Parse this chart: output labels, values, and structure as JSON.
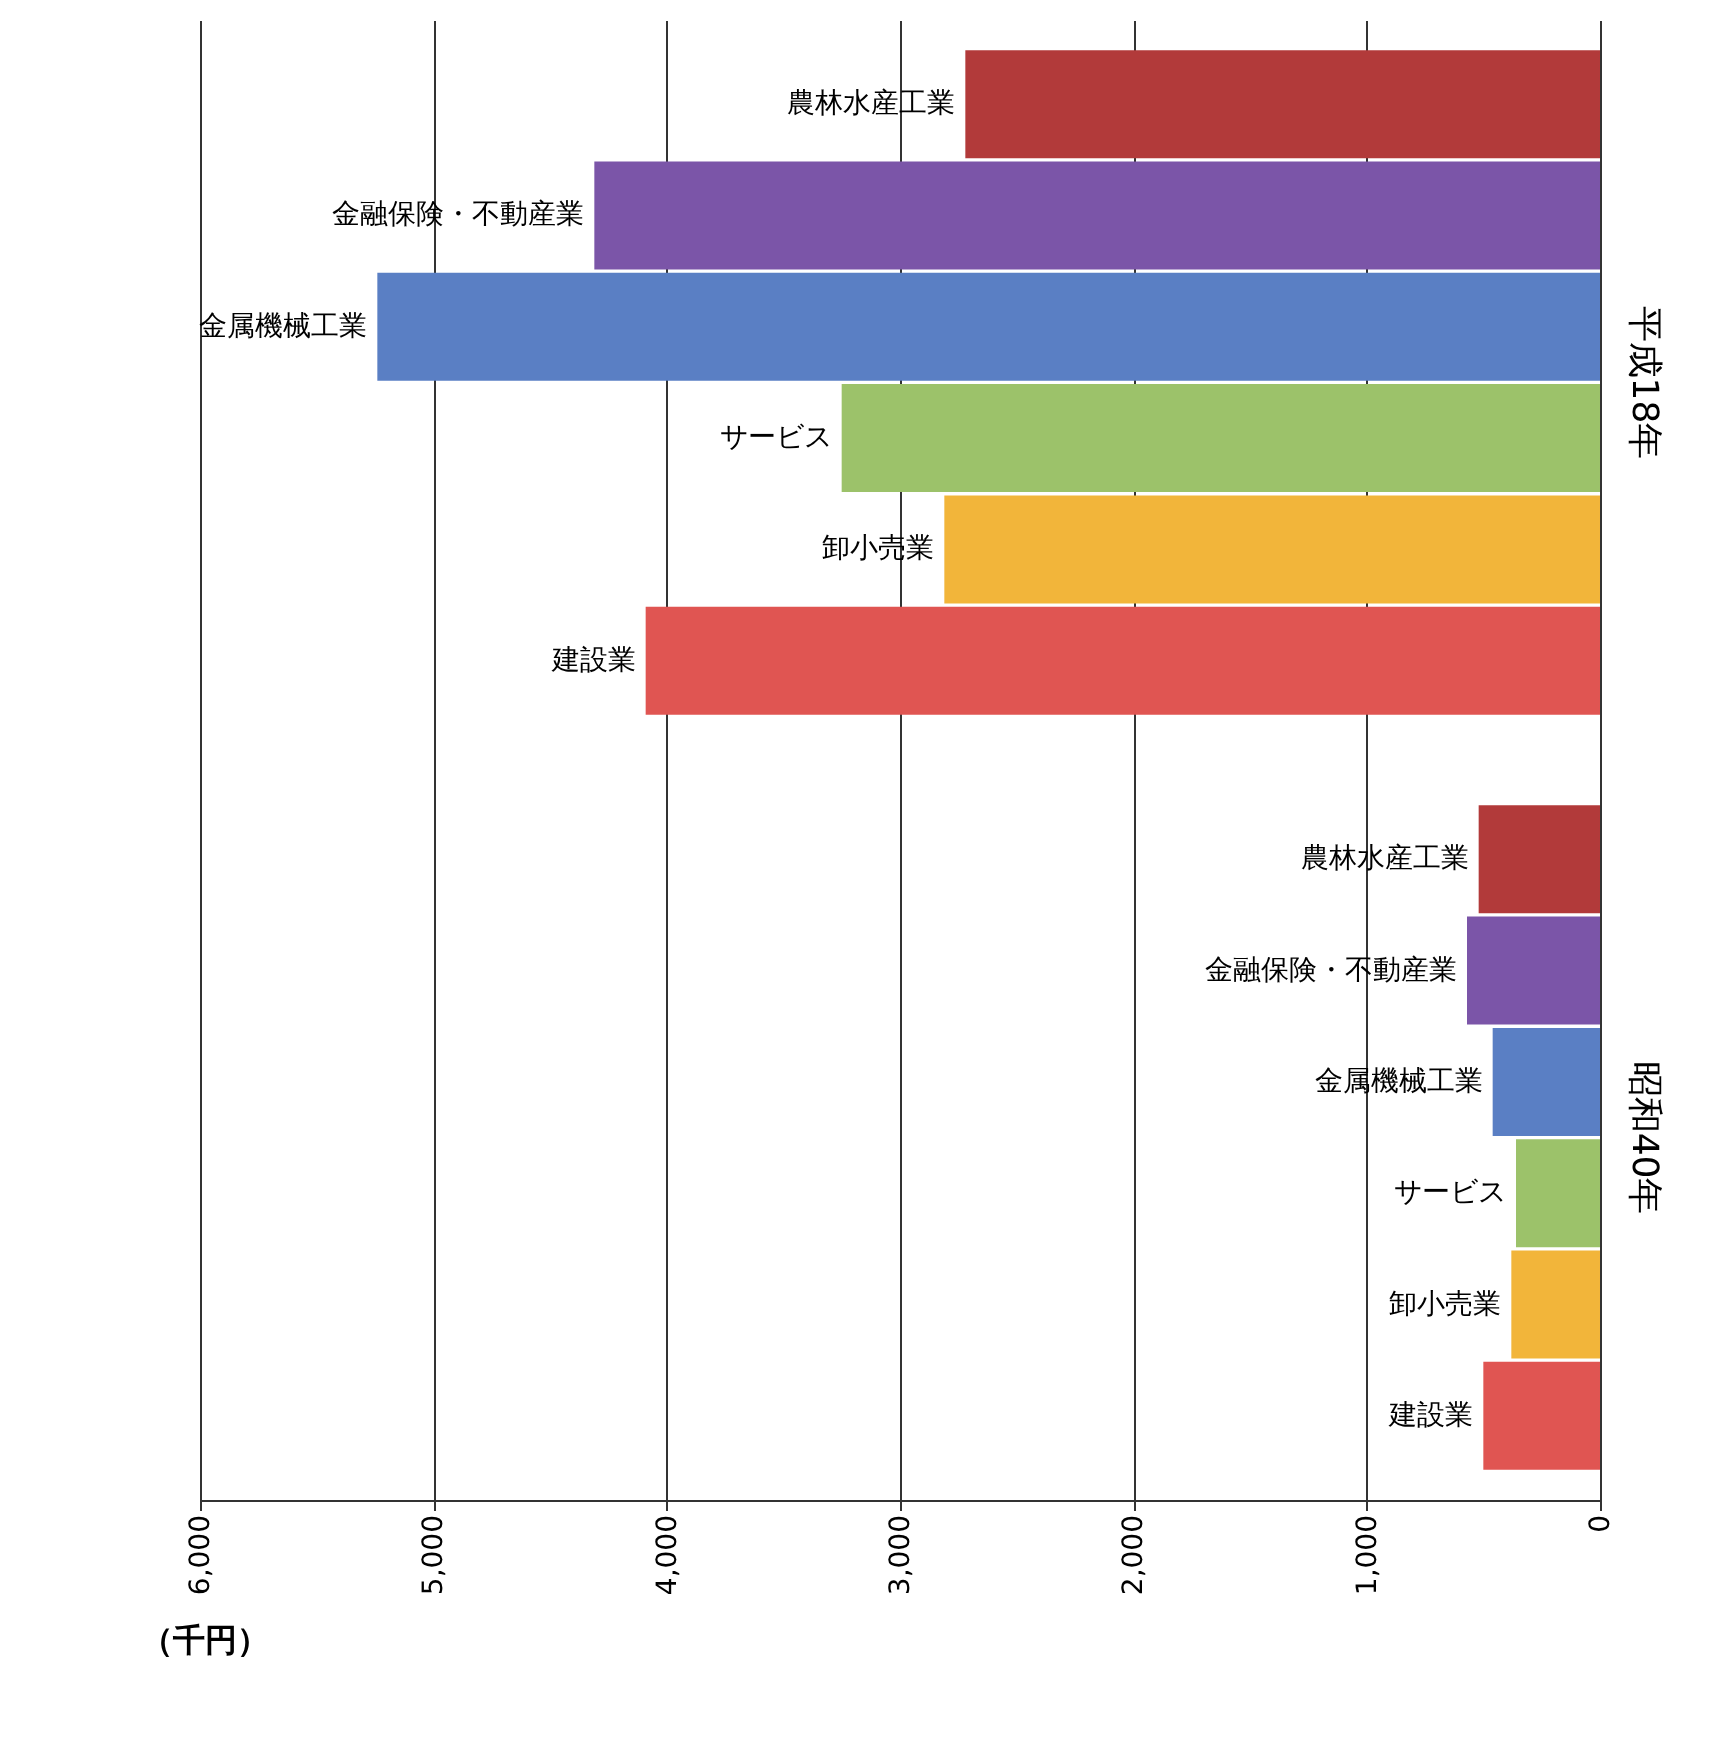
{
  "chart_data": {
    "type": "bar",
    "orientation": "horizontal",
    "xlabel": "（千円）",
    "categories": [
      "平成18年",
      "昭和40年"
    ],
    "series": [
      {
        "name": "農林水産工業",
        "color": "#b23a3a",
        "values": [
          2720,
          520
        ]
      },
      {
        "name": "金融保険・不動産業",
        "color": "#7b55a8",
        "values": [
          4310,
          570
        ]
      },
      {
        "name": "金属機械工業",
        "color": "#5a7fc4",
        "values": [
          5240,
          460
        ]
      },
      {
        "name": "サービス",
        "color": "#9cc26a",
        "values": [
          3250,
          360
        ]
      },
      {
        "name": "卸小売業",
        "color": "#f2b53a",
        "values": [
          2810,
          380
        ]
      },
      {
        "name": "建設業",
        "color": "#e05552",
        "values": [
          4090,
          500
        ]
      }
    ],
    "xlim": [
      6000,
      0
    ],
    "xticks": [
      {
        "value": 6000,
        "label": "6,000"
      },
      {
        "value": 5000,
        "label": "5,000"
      },
      {
        "value": 4000,
        "label": "4,000"
      },
      {
        "value": 3000,
        "label": "3,000"
      },
      {
        "value": 2000,
        "label": "2,000"
      },
      {
        "value": 1000,
        "label": "1,000"
      },
      0
    ],
    "grid": "x",
    "legend": false
  }
}
